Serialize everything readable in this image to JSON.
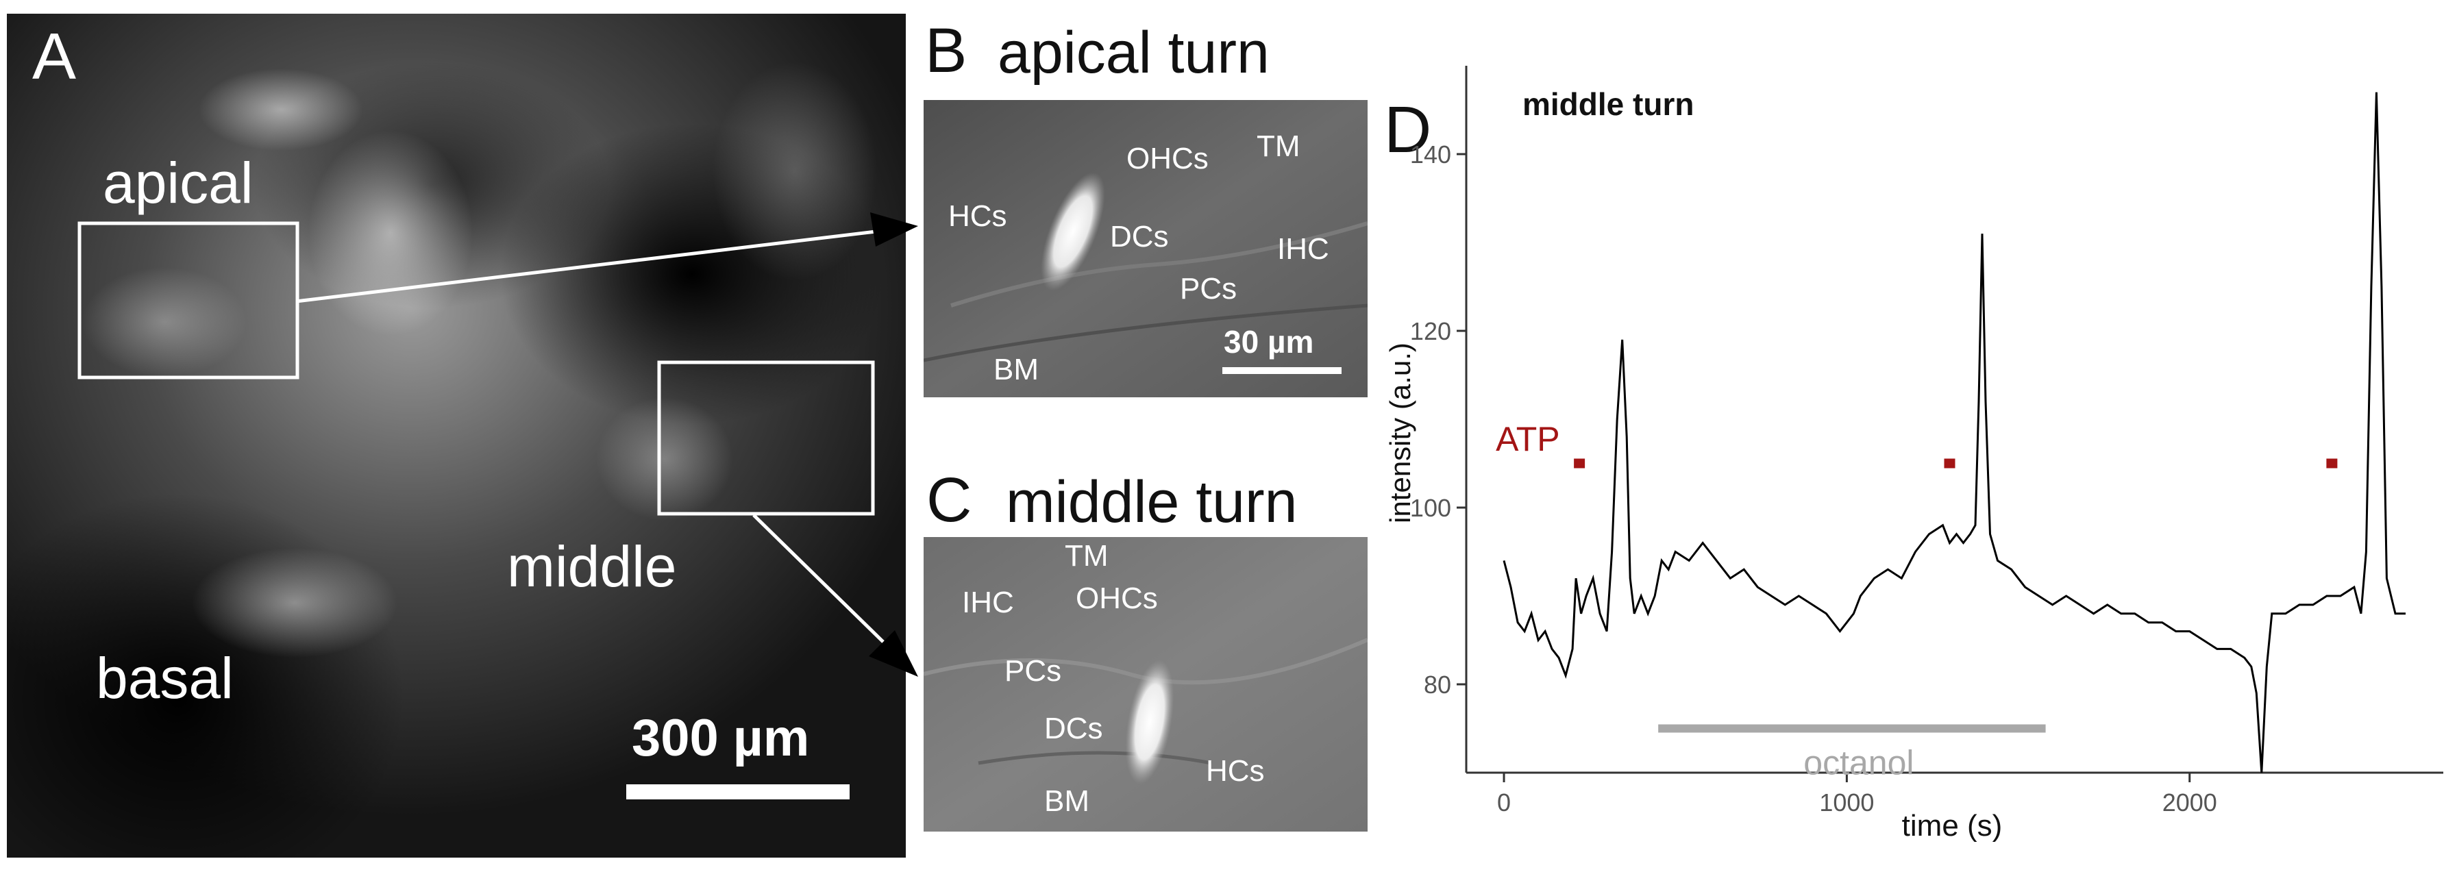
{
  "panelA": {
    "letter": "A",
    "apical": "apical",
    "middle": "middle",
    "basal": "basal",
    "scale": "300 µm"
  },
  "panelB": {
    "letter": "B",
    "title": "apical turn",
    "labels": {
      "ohcs": "OHCs",
      "tm": "TM",
      "hcs": "HCs",
      "dcs": "DCs",
      "ihc": "IHC",
      "pcs": "PCs",
      "bm": "BM"
    },
    "scale": "30 µm"
  },
  "panelC": {
    "letter": "C",
    "title": "middle turn",
    "labels": {
      "tm": "TM",
      "ihc": "IHC",
      "ohcs": "OHCs",
      "pcs": "PCs",
      "dcs": "DCs",
      "hcs": "HCs",
      "bm": "BM"
    }
  },
  "panelD": {
    "letter": "D"
  },
  "colors": {
    "atp": "#a31515",
    "octanol": "#a8a8a8",
    "trace": "#000000",
    "axis": "#333333"
  },
  "chart_data": {
    "type": "line",
    "title": "middle turn",
    "xlabel": "time (s)",
    "ylabel": "intensity (a.u.)",
    "xlim": [
      -110,
      2740
    ],
    "ylim": [
      70,
      150
    ],
    "x_ticks": [
      0,
      1000,
      2000
    ],
    "y_ticks": [
      80,
      100,
      120,
      140
    ],
    "grid": false,
    "series": [
      {
        "values_xy": [
          [
            0,
            94
          ],
          [
            20,
            91
          ],
          [
            40,
            87
          ],
          [
            60,
            86
          ],
          [
            80,
            88
          ],
          [
            100,
            85
          ],
          [
            120,
            86
          ],
          [
            140,
            84
          ],
          [
            160,
            83
          ],
          [
            180,
            81
          ],
          [
            200,
            84
          ],
          [
            210,
            92
          ],
          [
            225,
            88
          ],
          [
            240,
            90
          ],
          [
            260,
            92
          ],
          [
            280,
            88
          ],
          [
            300,
            86
          ],
          [
            315,
            95
          ],
          [
            330,
            110
          ],
          [
            345,
            119
          ],
          [
            358,
            108
          ],
          [
            368,
            92
          ],
          [
            380,
            88
          ],
          [
            400,
            90
          ],
          [
            420,
            88
          ],
          [
            440,
            90
          ],
          [
            460,
            94
          ],
          [
            480,
            93
          ],
          [
            500,
            95
          ],
          [
            540,
            94
          ],
          [
            580,
            96
          ],
          [
            620,
            94
          ],
          [
            660,
            92
          ],
          [
            700,
            93
          ],
          [
            740,
            91
          ],
          [
            780,
            90
          ],
          [
            820,
            89
          ],
          [
            860,
            90
          ],
          [
            900,
            89
          ],
          [
            940,
            88
          ],
          [
            980,
            86
          ],
          [
            1000,
            87
          ],
          [
            1020,
            88
          ],
          [
            1040,
            90
          ],
          [
            1080,
            92
          ],
          [
            1120,
            93
          ],
          [
            1160,
            92
          ],
          [
            1200,
            95
          ],
          [
            1240,
            97
          ],
          [
            1280,
            98
          ],
          [
            1300,
            96
          ],
          [
            1320,
            97
          ],
          [
            1340,
            96
          ],
          [
            1360,
            97
          ],
          [
            1375,
            98
          ],
          [
            1385,
            112
          ],
          [
            1395,
            131
          ],
          [
            1405,
            112
          ],
          [
            1418,
            97
          ],
          [
            1440,
            94
          ],
          [
            1480,
            93
          ],
          [
            1520,
            91
          ],
          [
            1560,
            90
          ],
          [
            1600,
            89
          ],
          [
            1640,
            90
          ],
          [
            1680,
            89
          ],
          [
            1720,
            88
          ],
          [
            1760,
            89
          ],
          [
            1800,
            88
          ],
          [
            1840,
            88
          ],
          [
            1880,
            87
          ],
          [
            1920,
            87
          ],
          [
            1960,
            86
          ],
          [
            2000,
            86
          ],
          [
            2040,
            85
          ],
          [
            2080,
            84
          ],
          [
            2120,
            84
          ],
          [
            2160,
            83
          ],
          [
            2180,
            82
          ],
          [
            2195,
            79
          ],
          [
            2210,
            70
          ],
          [
            2225,
            82
          ],
          [
            2240,
            88
          ],
          [
            2280,
            88
          ],
          [
            2320,
            89
          ],
          [
            2360,
            89
          ],
          [
            2400,
            90
          ],
          [
            2440,
            90
          ],
          [
            2480,
            91
          ],
          [
            2500,
            88
          ],
          [
            2515,
            95
          ],
          [
            2530,
            125
          ],
          [
            2545,
            147
          ],
          [
            2560,
            125
          ],
          [
            2575,
            92
          ],
          [
            2600,
            88
          ],
          [
            2630,
            88
          ]
        ]
      }
    ],
    "annotations": [
      {
        "text": "ATP",
        "x": 200,
        "y": 108,
        "color": "#a31515"
      },
      {
        "text": "octanol",
        "x": 1035,
        "y": 76
      }
    ],
    "atp_markers_x": [
      220,
      1300,
      2415
    ],
    "atp_marker_y": 105,
    "octanol_bar": {
      "x_start": 450,
      "x_end": 1580,
      "y": 75
    }
  }
}
